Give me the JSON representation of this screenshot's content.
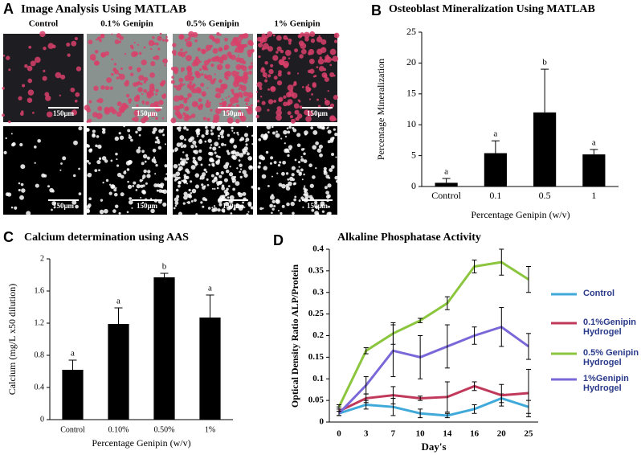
{
  "panel_a": {
    "label": "A",
    "title": "Image Analysis Using MATLAB",
    "columns": [
      "Control",
      "0.1% Genipin",
      "0.5% Genipin",
      "1% Genipin"
    ],
    "scale_bar": "150μm"
  },
  "chart_data": [
    {
      "type": "bar",
      "panel": "B",
      "title": "Osteoblast Mineralization  Using MATLAB",
      "categories": [
        "Control",
        "0.1",
        "0.5",
        "1"
      ],
      "values": [
        0.6,
        5.4,
        12,
        5.2
      ],
      "errors": [
        0.7,
        2,
        7,
        0.8
      ],
      "letters": [
        "a",
        "a",
        "b",
        "a"
      ],
      "color": "#000000",
      "xlabel": "Percentage Genipin (w/v)",
      "ylabel": "Percentage Mineralization",
      "ylim": [
        0,
        25
      ],
      "yticks": [
        0,
        5,
        10,
        15,
        20,
        25
      ]
    },
    {
      "type": "bar",
      "panel": "C",
      "title": "Calcium determination  using AAS",
      "categories": [
        "Control",
        "0.10%",
        "0.50%",
        "1%"
      ],
      "values": [
        0.62,
        1.19,
        1.77,
        1.27
      ],
      "errors": [
        0.12,
        0.2,
        0.05,
        0.28
      ],
      "letters": [
        "a",
        "a",
        "b",
        "a"
      ],
      "color": "#000000",
      "xlabel": "Percentage Genipin (w/v)",
      "ylabel": "Calcium (mg/L x50 dilution)",
      "ylim": [
        0,
        2
      ],
      "yticks": [
        0,
        0.4,
        0.8,
        1.2,
        1.6,
        2
      ]
    },
    {
      "type": "line",
      "panel": "D",
      "title": "Alkaline Phosphatase Activity",
      "categories": [
        "0",
        "3",
        "7",
        "10",
        "14",
        "16",
        "20",
        "25"
      ],
      "xlabel": "Day's",
      "ylabel": "Optical  Density Ratio ALP/Protein",
      "ylim": [
        0,
        0.4
      ],
      "yticks": [
        0,
        0.05,
        0.1,
        0.15,
        0.2,
        0.25,
        0.3,
        0.35,
        0.4
      ],
      "series": [
        {
          "name": "Control",
          "color": "#3fa9d9",
          "values": [
            0.02,
            0.04,
            0.035,
            0.02,
            0.015,
            0.03,
            0.055,
            0.035
          ],
          "errors": [
            0.005,
            0.01,
            0.02,
            0.01,
            0.005,
            0.01,
            0.01,
            0.015
          ]
        },
        {
          "name": "0.1%Genipin Hydrogel",
          "color": "#c0385a",
          "values": [
            0.025,
            0.055,
            0.062,
            0.055,
            0.058,
            0.083,
            0.062,
            0.067
          ],
          "errors": [
            0.01,
            0.01,
            0.02,
            0.005,
            0.035,
            0.01,
            0.025,
            0.055
          ]
        },
        {
          "name": "0.5% Genipin Hydrogel",
          "color": "#8cc63f",
          "values": [
            0.035,
            0.165,
            0.205,
            0.235,
            0.275,
            0.36,
            0.37,
            0.33
          ],
          "errors": [
            0.005,
            0.007,
            0.025,
            0.005,
            0.015,
            0.015,
            0.03,
            0.03
          ]
        },
        {
          "name": "1%Genipin Hydrogel",
          "color": "#7b68d8",
          "values": [
            0.02,
            0.085,
            0.165,
            0.15,
            0.175,
            0.2,
            0.22,
            0.175
          ],
          "errors": [
            0.005,
            0.02,
            0.06,
            0.05,
            0.05,
            0.02,
            0.045,
            0.03
          ]
        }
      ]
    }
  ]
}
